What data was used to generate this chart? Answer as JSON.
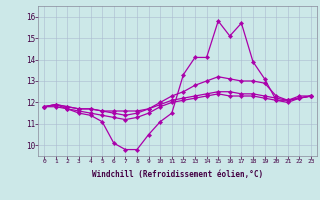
{
  "xlabel": "Windchill (Refroidissement éolien,°C)",
  "background_color": "#cce8e8",
  "grid_color": "#aabbd0",
  "line_color": "#aa00aa",
  "xlim": [
    -0.5,
    23.5
  ],
  "ylim": [
    9.5,
    16.5
  ],
  "xticks": [
    0,
    1,
    2,
    3,
    4,
    5,
    6,
    7,
    8,
    9,
    10,
    11,
    12,
    13,
    14,
    15,
    16,
    17,
    18,
    19,
    20,
    21,
    22,
    23
  ],
  "yticks": [
    10,
    11,
    12,
    13,
    14,
    15,
    16
  ],
  "series": [
    [
      11.8,
      11.9,
      11.7,
      11.5,
      11.4,
      11.1,
      10.1,
      9.8,
      9.8,
      10.5,
      11.1,
      11.5,
      13.3,
      14.1,
      14.1,
      15.8,
      15.1,
      15.7,
      13.9,
      13.1,
      12.1,
      12.1,
      12.3,
      12.3
    ],
    [
      11.8,
      11.9,
      11.8,
      11.7,
      11.7,
      11.6,
      11.5,
      11.4,
      11.5,
      11.7,
      12.0,
      12.3,
      12.5,
      12.8,
      13.0,
      13.2,
      13.1,
      13.0,
      13.0,
      12.9,
      12.3,
      12.1,
      12.2,
      12.3
    ],
    [
      11.8,
      11.9,
      11.8,
      11.7,
      11.7,
      11.6,
      11.6,
      11.6,
      11.6,
      11.7,
      11.9,
      12.1,
      12.2,
      12.3,
      12.4,
      12.5,
      12.5,
      12.4,
      12.4,
      12.3,
      12.2,
      12.1,
      12.2,
      12.3
    ],
    [
      11.8,
      11.8,
      11.7,
      11.6,
      11.5,
      11.4,
      11.3,
      11.2,
      11.3,
      11.5,
      11.8,
      12.0,
      12.1,
      12.2,
      12.3,
      12.4,
      12.3,
      12.3,
      12.3,
      12.2,
      12.1,
      12.0,
      12.2,
      12.3
    ]
  ],
  "xlabel_fontsize": 5.5,
  "xtick_fontsize": 4.5,
  "ytick_fontsize": 5.5,
  "linewidth": 0.9,
  "markersize": 2.2
}
